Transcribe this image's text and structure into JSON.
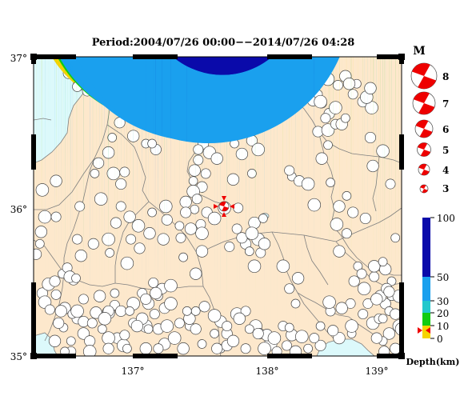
{
  "title": "Period:2004/07/26 00:00−−2014/07/26 04:28",
  "map": {
    "lat_labels": [
      "37°",
      "36°",
      "35°"
    ],
    "lon_labels": [
      "137°",
      "138°",
      "139°"
    ],
    "lat_range": [
      35.0,
      37.0
    ],
    "lon_range": [
      136.25,
      139.2
    ],
    "colors": {
      "land": "#fde8cc",
      "sea": "#dcf9fb",
      "border": "#7f7f7f",
      "frame": "#000000"
    }
  },
  "magnitude_legend": {
    "header": "M",
    "items": [
      "8",
      "7",
      "6",
      "5",
      "4",
      "3"
    ]
  },
  "depth_scale": {
    "labels": [
      "100",
      "50",
      "30",
      "20",
      "10",
      "0"
    ],
    "axis_label": "Depth(km)",
    "colors": {
      "0-10": "#f6d400",
      "10-20": "#11cc11",
      "20-30": "#22c8cc",
      "30-50": "#1aa0ee",
      "50-100": "#0a0aaa"
    }
  },
  "main_shock": {
    "color": "#ee0000"
  },
  "events": [
    {
      "group": "yellow",
      "color": "#f6d400",
      "points": [
        [
          136.53,
          36.89
        ],
        [
          136.62,
          36.82
        ],
        [
          136.68,
          36.77
        ],
        [
          137.27,
          36.77
        ],
        [
          137.33,
          36.83
        ],
        [
          137.39,
          36.68
        ],
        [
          137.72,
          36.59
        ],
        [
          137.77,
          36.53
        ],
        [
          137.69,
          36.51
        ],
        [
          137.74,
          36.47
        ],
        [
          137.61,
          36.42
        ],
        [
          137.66,
          36.36
        ],
        [
          137.57,
          36.31
        ],
        [
          137.54,
          36.24
        ],
        [
          137.53,
          36.17
        ],
        [
          137.6,
          36.13
        ],
        [
          137.53,
          36.1
        ],
        [
          137.56,
          36.05
        ],
        [
          137.47,
          36.03
        ],
        [
          137.54,
          35.98
        ],
        [
          137.64,
          35.96
        ],
        [
          137.7,
          35.92
        ],
        [
          137.59,
          35.88
        ],
        [
          137.51,
          35.85
        ],
        [
          137.42,
          35.87
        ],
        [
          137.32,
          35.91
        ],
        [
          137.6,
          35.82
        ],
        [
          137.43,
          35.79
        ],
        [
          137.29,
          35.78
        ],
        [
          136.74,
          36.22
        ],
        [
          136.77,
          36.29
        ],
        [
          136.89,
          36.22
        ],
        [
          136.98,
          36.23
        ],
        [
          136.85,
          36.36
        ],
        [
          136.88,
          36.46
        ],
        [
          136.94,
          36.56
        ],
        [
          137.1,
          36.61
        ],
        [
          137.2,
          36.54
        ],
        [
          137.05,
          36.47
        ],
        [
          137.15,
          36.42
        ],
        [
          137.23,
          36.38
        ],
        [
          136.79,
          36.05
        ],
        [
          136.95,
          36.0
        ],
        [
          137.02,
          35.93
        ],
        [
          137.2,
          35.96
        ],
        [
          136.91,
          35.89
        ],
        [
          137.09,
          35.87
        ],
        [
          137.03,
          35.78
        ],
        [
          137.18,
          35.82
        ],
        [
          136.86,
          35.69
        ],
        [
          137.1,
          35.72
        ],
        [
          137.0,
          35.62
        ],
        [
          136.6,
          35.78
        ],
        [
          136.63,
          35.67
        ],
        [
          136.48,
          35.55
        ],
        [
          136.57,
          35.51
        ],
        [
          136.34,
          35.93
        ],
        [
          136.43,
          35.93
        ],
        [
          136.31,
          35.83
        ],
        [
          136.3,
          35.75
        ],
        [
          136.27,
          35.68
        ],
        [
          136.32,
          36.11
        ],
        [
          136.62,
          36.0
        ],
        [
          136.43,
          36.17
        ],
        [
          138.32,
          36.2
        ],
        [
          138.38,
          36.17
        ],
        [
          138.45,
          36.15
        ],
        [
          138.3,
          36.24
        ],
        [
          138.56,
          36.32
        ],
        [
          138.61,
          36.41
        ],
        [
          138.53,
          36.5
        ],
        [
          138.61,
          36.51
        ],
        [
          138.67,
          36.55
        ],
        [
          138.72,
          36.55
        ],
        [
          138.75,
          36.59
        ],
        [
          138.62,
          36.62
        ],
        [
          138.67,
          36.66
        ],
        [
          138.56,
          36.69
        ],
        [
          138.49,
          36.71
        ],
        [
          138.53,
          36.75
        ],
        [
          138.45,
          36.77
        ],
        [
          138.61,
          36.85
        ],
        [
          138.69,
          36.81
        ],
        [
          138.75,
          36.87
        ],
        [
          138.84,
          36.82
        ],
        [
          138.89,
          36.7
        ],
        [
          138.96,
          36.66
        ],
        [
          138.81,
          36.75
        ],
        [
          138.78,
          36.82
        ],
        [
          138.47,
          36.83
        ],
        [
          138.57,
          36.91
        ],
        [
          138.92,
          36.73
        ],
        [
          138.42,
          36.89
        ],
        [
          138.7,
          36.0
        ],
        [
          138.76,
          36.07
        ],
        [
          138.81,
          35.96
        ],
        [
          138.68,
          35.88
        ],
        [
          138.76,
          35.82
        ],
        [
          138.7,
          35.7
        ],
        [
          138.85,
          35.6
        ],
        [
          138.82,
          35.5
        ],
        [
          138.97,
          35.22
        ],
        [
          139.02,
          35.25
        ],
        [
          139.1,
          35.15
        ],
        [
          139.05,
          35.1
        ],
        [
          139.15,
          35.05
        ],
        [
          139.18,
          35.2
        ],
        [
          138.63,
          35.3
        ],
        [
          138.7,
          35.12
        ],
        [
          138.8,
          35.15
        ],
        [
          139.07,
          35.35
        ],
        [
          138.25,
          35.6
        ],
        [
          138.3,
          35.45
        ],
        [
          138.37,
          35.52
        ],
        [
          138.35,
          35.35
        ],
        [
          137.95,
          35.75
        ],
        [
          138.05,
          35.78
        ],
        [
          137.88,
          35.85
        ],
        [
          137.55,
          35.55
        ],
        [
          136.65,
          35.15
        ],
        [
          136.6,
          35.25
        ],
        [
          137.15,
          35.2
        ]
      ]
    },
    {
      "group": "green",
      "color": "#11cc11",
      "points": [
        [
          136.6,
          36.8
        ],
        [
          137.92,
          36.35
        ],
        [
          137.86,
          36.42
        ],
        [
          138.0,
          36.44
        ],
        [
          138.05,
          36.38
        ],
        [
          137.57,
          36.38
        ],
        [
          137.85,
          36.18
        ],
        [
          138.0,
          36.22
        ],
        [
          137.47,
          35.96
        ],
        [
          137.31,
          36.0
        ],
        [
          137.63,
          36.22
        ],
        [
          137.72,
          36.32
        ],
        [
          137.2,
          36.42
        ],
        [
          136.95,
          36.15
        ],
        [
          137.78,
          35.99
        ],
        [
          137.89,
          35.99
        ],
        [
          138.02,
          35.89
        ],
        [
          138.09,
          35.92
        ],
        [
          137.92,
          35.79
        ],
        [
          138.0,
          35.82
        ],
        [
          137.82,
          35.73
        ],
        [
          137.6,
          35.7
        ],
        [
          137.45,
          35.66
        ],
        [
          136.73,
          35.75
        ],
        [
          136.85,
          35.78
        ],
        [
          136.52,
          35.59
        ],
        [
          136.54,
          35.53
        ],
        [
          136.59,
          35.52
        ],
        [
          136.32,
          35.42
        ],
        [
          136.37,
          35.48
        ],
        [
          136.43,
          35.41
        ],
        [
          136.5,
          35.32
        ],
        [
          136.49,
          35.19
        ],
        [
          136.65,
          35.23
        ],
        [
          136.85,
          35.29
        ],
        [
          136.9,
          35.34
        ],
        [
          136.75,
          35.29
        ],
        [
          136.8,
          35.18
        ],
        [
          136.92,
          35.12
        ],
        [
          136.97,
          35.07
        ],
        [
          137.05,
          35.22
        ],
        [
          137.3,
          35.08
        ],
        [
          137.5,
          35.2
        ],
        [
          137.8,
          35.15
        ],
        [
          138.03,
          35.2
        ],
        [
          138.25,
          35.2
        ],
        [
          138.32,
          35.14
        ],
        [
          138.55,
          35.2
        ],
        [
          138.65,
          35.17
        ],
        [
          138.8,
          35.2
        ],
        [
          138.89,
          35.28
        ],
        [
          139.03,
          35.4
        ],
        [
          139.1,
          35.3
        ],
        [
          139.0,
          35.12
        ],
        [
          138.62,
          35.36
        ],
        [
          138.79,
          35.35
        ],
        [
          138.72,
          35.32
        ],
        [
          138.63,
          36.16
        ],
        [
          138.95,
          36.46
        ],
        [
          139.05,
          36.37
        ],
        [
          139.11,
          36.15
        ],
        [
          138.97,
          36.27
        ],
        [
          139.15,
          35.79
        ],
        [
          138.91,
          35.92
        ],
        [
          138.55,
          36.7
        ],
        [
          138.59,
          36.59
        ],
        [
          138.95,
          36.79
        ],
        [
          139.12,
          35.4
        ],
        [
          139.06,
          35.03
        ]
      ]
    },
    {
      "group": "cyan",
      "color": "#22c8cc",
      "points": [
        [
          138.02,
          35.6
        ],
        [
          138.07,
          35.69
        ],
        [
          138.1,
          35.75
        ],
        [
          137.98,
          35.7
        ],
        [
          138.06,
          35.15
        ],
        [
          138.15,
          35.08
        ],
        [
          138.2,
          35.03
        ],
        [
          138.12,
          35.14
        ],
        [
          137.75,
          35.05
        ],
        [
          137.8,
          35.07
        ],
        [
          138.9,
          35.45
        ],
        [
          138.98,
          35.53
        ],
        [
          139.07,
          35.58
        ],
        [
          139.12,
          35.5
        ],
        [
          139.08,
          35.45
        ],
        [
          139.18,
          35.4
        ],
        [
          138.93,
          35.35
        ],
        [
          139.0,
          35.38
        ],
        [
          139.05,
          35.25
        ],
        [
          139.15,
          35.28
        ],
        [
          139.2,
          35.18
        ],
        [
          138.88,
          35.55
        ],
        [
          138.98,
          35.6
        ],
        [
          139.05,
          35.63
        ],
        [
          139.1,
          35.43
        ],
        [
          137.88,
          35.28
        ],
        [
          137.95,
          35.3
        ],
        [
          137.75,
          35.23
        ],
        [
          138.3,
          35.19
        ]
      ]
    },
    {
      "group": "blue",
      "color": "#1aa0ee",
      "points": [
        [
          136.42,
          35.5
        ],
        [
          136.34,
          35.36
        ],
        [
          136.38,
          35.31
        ],
        [
          136.47,
          35.3
        ],
        [
          136.56,
          35.28
        ],
        [
          136.45,
          35.22
        ],
        [
          136.6,
          35.3
        ],
        [
          136.65,
          35.38
        ],
        [
          136.78,
          35.4
        ],
        [
          136.9,
          35.42
        ],
        [
          136.95,
          35.3
        ],
        [
          137.05,
          35.35
        ],
        [
          137.12,
          35.42
        ],
        [
          137.17,
          35.35
        ],
        [
          137.25,
          35.4
        ],
        [
          137.3,
          35.32
        ],
        [
          137.35,
          35.35
        ],
        [
          137.22,
          35.28
        ],
        [
          137.12,
          35.25
        ],
        [
          137.02,
          35.3
        ],
        [
          136.85,
          35.3
        ],
        [
          136.82,
          35.25
        ],
        [
          136.72,
          35.22
        ],
        [
          136.65,
          35.15
        ],
        [
          136.55,
          35.1
        ],
        [
          136.7,
          35.1
        ],
        [
          136.85,
          35.12
        ],
        [
          136.98,
          35.14
        ],
        [
          137.08,
          35.2
        ],
        [
          137.17,
          35.18
        ],
        [
          137.25,
          35.18
        ],
        [
          137.32,
          35.2
        ],
        [
          137.42,
          35.22
        ],
        [
          137.5,
          35.25
        ],
        [
          137.55,
          35.3
        ],
        [
          137.62,
          35.33
        ],
        [
          137.7,
          35.27
        ],
        [
          137.8,
          35.2
        ],
        [
          137.9,
          35.25
        ],
        [
          137.98,
          35.18
        ],
        [
          138.05,
          35.15
        ],
        [
          138.1,
          35.05
        ],
        [
          137.95,
          35.05
        ],
        [
          137.85,
          35.1
        ],
        [
          137.7,
          35.15
        ],
        [
          137.55,
          35.18
        ],
        [
          137.38,
          35.12
        ],
        [
          137.25,
          35.05
        ],
        [
          137.15,
          35.05
        ],
        [
          137.0,
          35.05
        ],
        [
          136.85,
          35.05
        ],
        [
          136.7,
          35.03
        ],
        [
          136.55,
          35.03
        ],
        [
          137.45,
          35.05
        ],
        [
          137.6,
          35.08
        ],
        [
          137.72,
          35.05
        ],
        [
          138.18,
          35.12
        ],
        [
          138.28,
          35.07
        ],
        [
          138.35,
          35.03
        ],
        [
          138.45,
          35.05
        ],
        [
          138.55,
          35.07
        ],
        [
          138.4,
          35.13
        ],
        [
          138.5,
          35.12
        ],
        [
          136.42,
          35.1
        ],
        [
          136.5,
          35.03
        ]
      ]
    },
    {
      "group": "darkblue",
      "color": "#0a0aaa",
      "points": [
        [
          137.28,
          35.45
        ],
        [
          137.35,
          35.47
        ],
        [
          137.21,
          35.49
        ],
        [
          137.23,
          35.42
        ],
        [
          137.48,
          35.3
        ],
        [
          137.15,
          35.38
        ],
        [
          138.5,
          36.01
        ]
      ]
    }
  ]
}
